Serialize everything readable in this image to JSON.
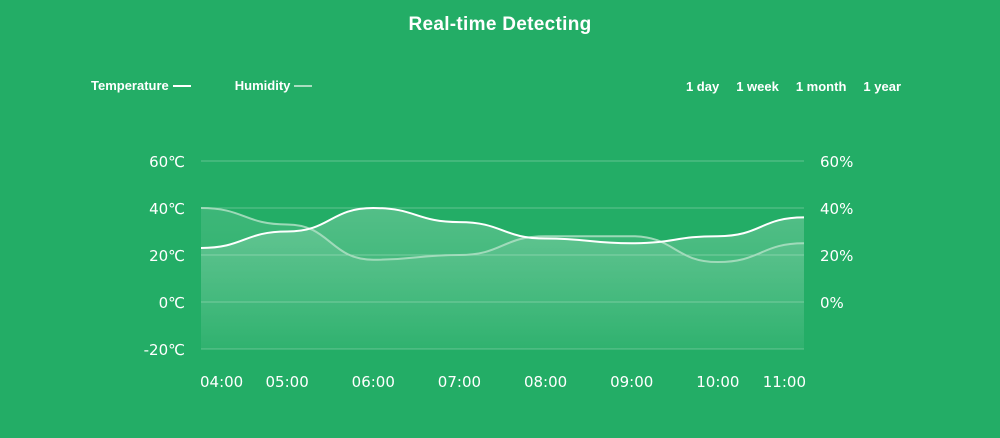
{
  "header": {
    "title": "Real-time Detecting"
  },
  "range_tabs": [
    "1 day",
    "1 week",
    "1 month",
    "1 year"
  ],
  "colors": {
    "background": "#23ad66",
    "temperature": "#ffffff",
    "humidity": "#a9dec0"
  },
  "chart_data": {
    "type": "line",
    "title": "Real-time Detecting",
    "categories": [
      "04:00",
      "05:00",
      "06:00",
      "07:00",
      "08:00",
      "09:00",
      "10:00",
      "11:00"
    ],
    "series": [
      {
        "name": "Temperature",
        "axis": "left",
        "unit": "℃",
        "values": [
          23,
          30,
          40,
          34,
          27,
          25,
          28,
          36
        ]
      },
      {
        "name": "Humidity",
        "axis": "right",
        "unit": "%",
        "values": [
          40,
          33,
          18,
          20,
          28,
          28,
          17,
          25
        ]
      }
    ],
    "y_left": {
      "ticks": [
        "60℃",
        "40℃",
        "20℃",
        "0℃",
        "-20℃"
      ],
      "range": [
        -20,
        60
      ]
    },
    "y_right": {
      "ticks": [
        "60%",
        "40%",
        "20%",
        "0%"
      ],
      "range": [
        -20,
        60
      ]
    },
    "grid": true,
    "legend": "top-left"
  }
}
